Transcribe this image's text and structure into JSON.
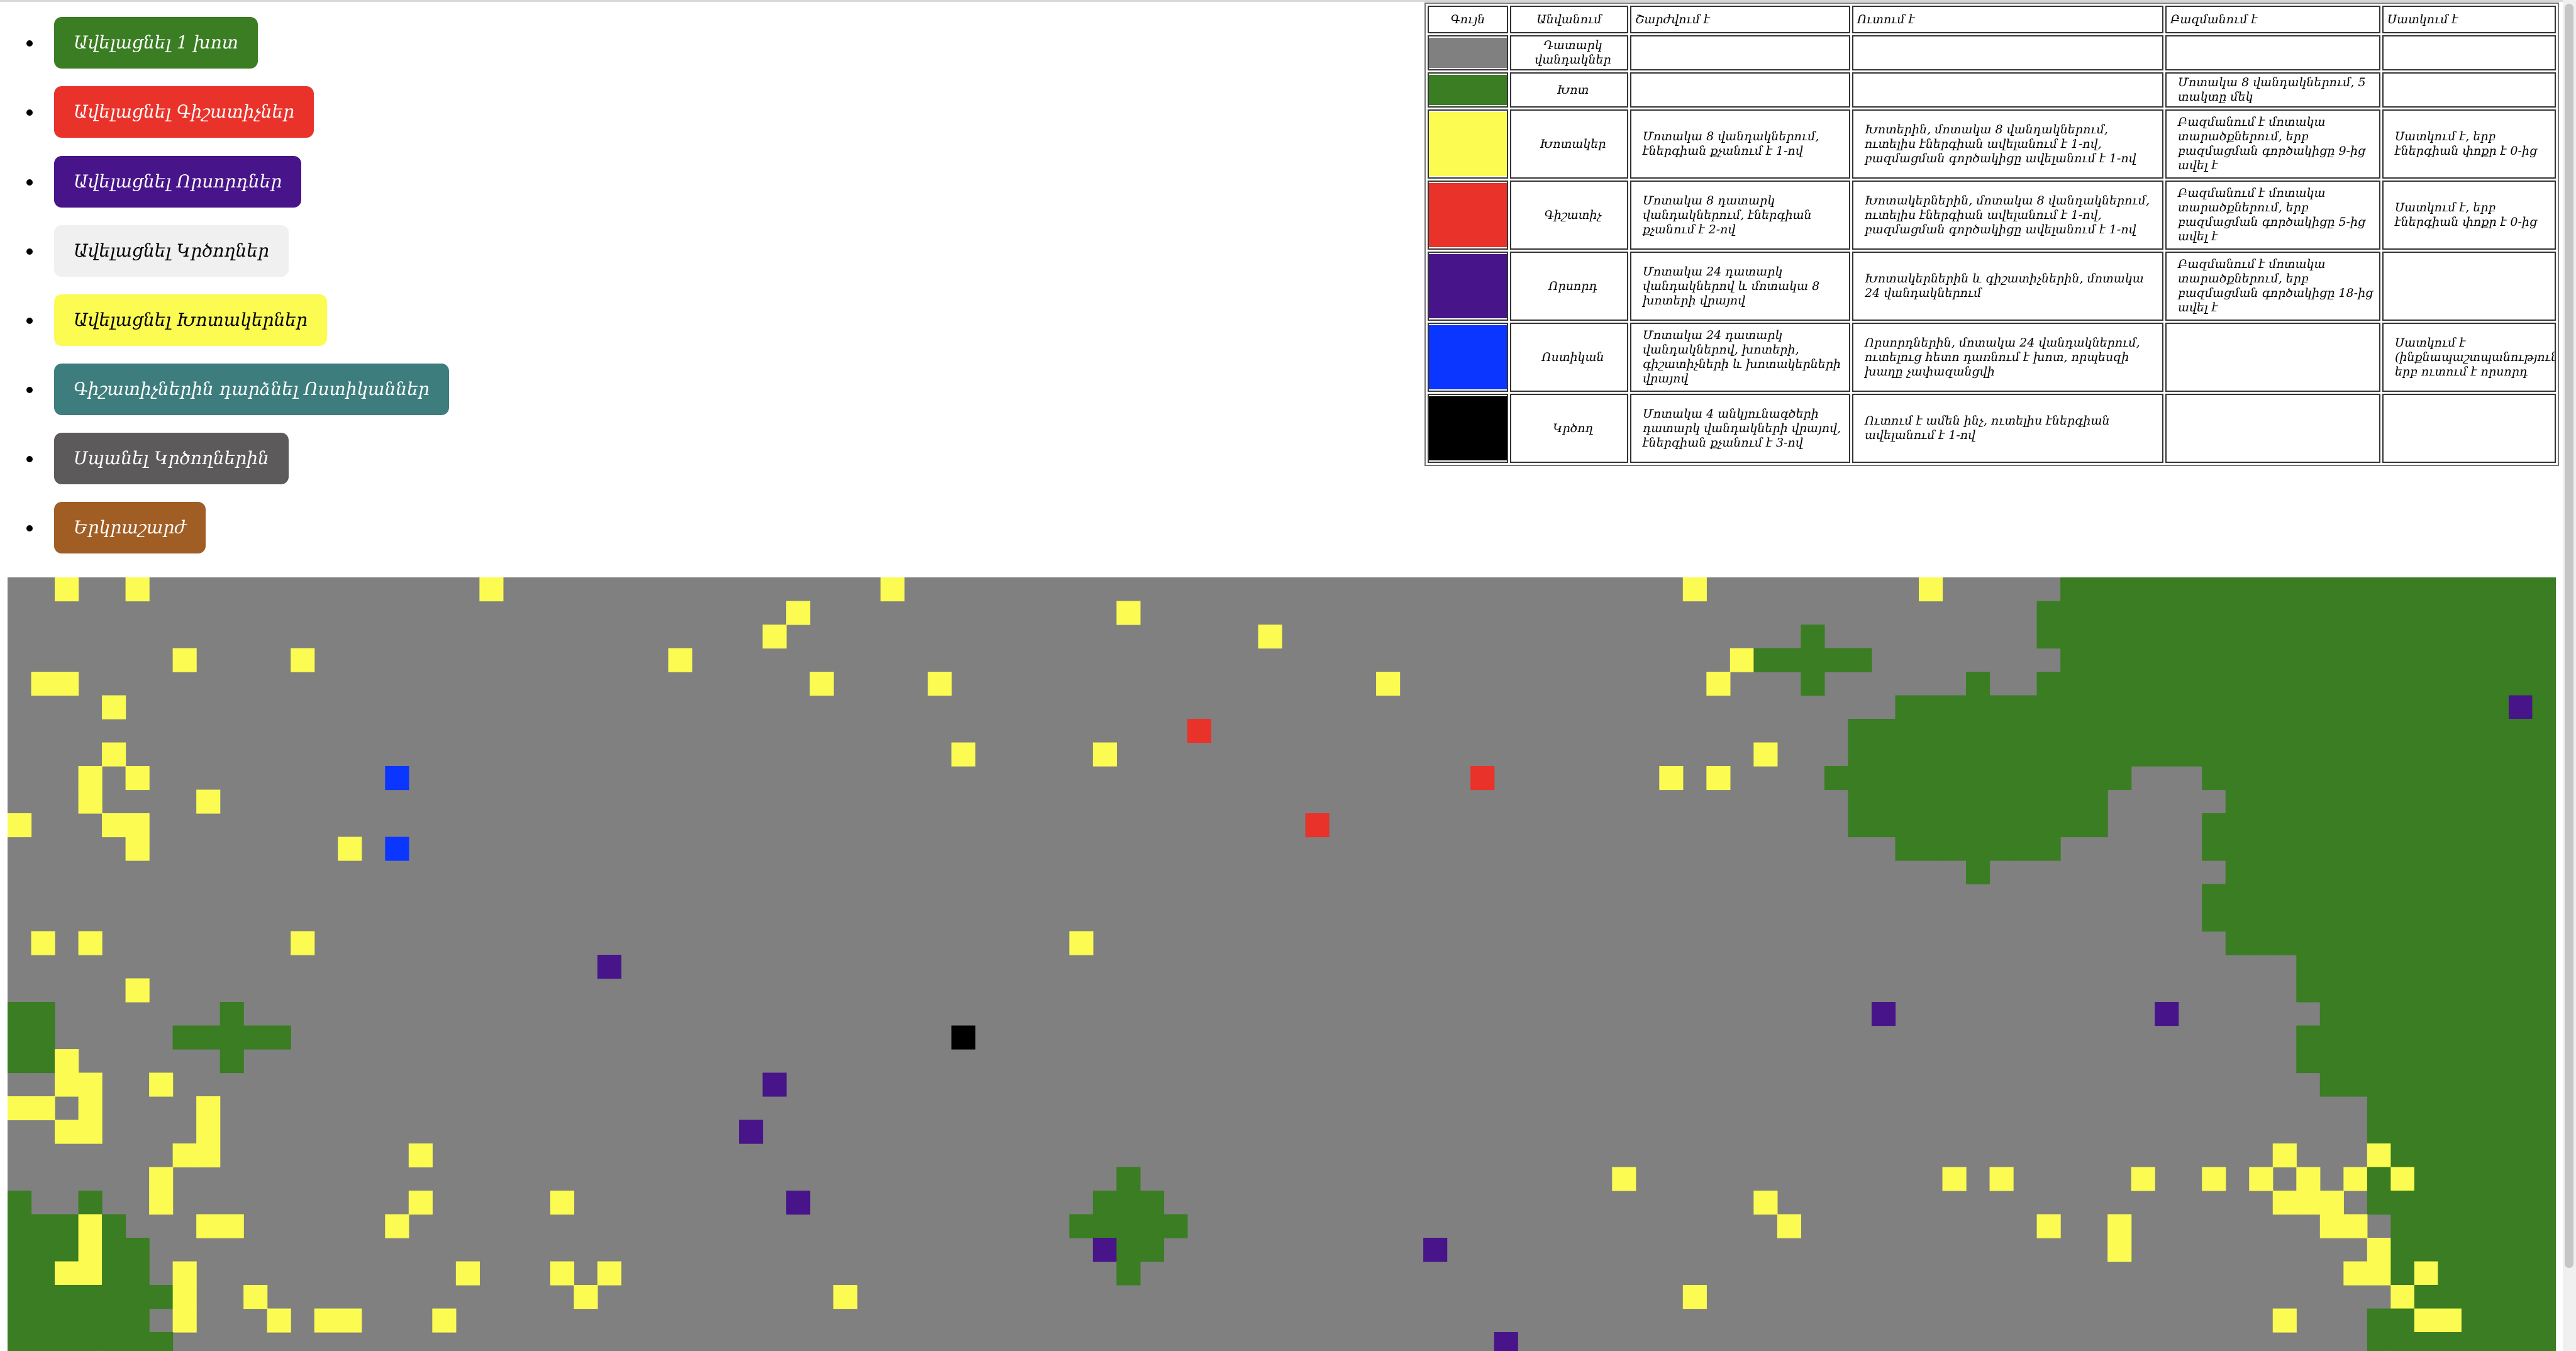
{
  "controls": [
    {
      "label": "Ավելացնել 1 խոտ",
      "bg": "#3a7d22",
      "fg": "#ffffff"
    },
    {
      "label": "Ավելացնել Գիշատիչներ",
      "bg": "#e8322a",
      "fg": "#ffffff"
    },
    {
      "label": "Ավելացնել Որսորդներ",
      "bg": "#471589",
      "fg": "#ffffff"
    },
    {
      "label": "Ավելացնել Կրծողներ",
      "bg": "#f0f0f0",
      "fg": "#000000"
    },
    {
      "label": "Ավելացնել Խոտակերներ",
      "bg": "#fbfb52",
      "fg": "#000000"
    },
    {
      "label": "Գիշատիչներին դարձնել Ոստիկաններ",
      "bg": "#3d7d7d",
      "fg": "#ffffff"
    },
    {
      "label": "Սպանել Կրծողներին",
      "bg": "#5c5a5a",
      "fg": "#ffffff"
    },
    {
      "label": "Երկրաշարժ",
      "bg": "#a05e25",
      "fg": "#ffffff"
    }
  ],
  "legend": {
    "headers": [
      "Գույն",
      "Անվանում",
      "Շարժվում է",
      "Ուտում է",
      "Բազմանում է",
      "Սատկում է"
    ],
    "rows": [
      {
        "color": "#808080",
        "name": "Դատարկ վանդակներ",
        "moves": "",
        "eats": "",
        "multiplies": "",
        "dies": ""
      },
      {
        "color": "#3a7d22",
        "name": "Խոտ",
        "moves": "",
        "eats": "",
        "multiplies": "Մոտակա 8 վանդակներում, 5 տակտը մեկ",
        "dies": ""
      },
      {
        "color": "#fbfb52",
        "name": "Խոտակեր",
        "moves": "Մոտակա 8 վանդակներում, էներգիան քչանում է 1-ով",
        "eats": "Խոտերին, մոտակա 8 վանդակներում, ուտելիս էներգիան ավելանում է 1-ով, բազմացման գործակիցը ավելանում է 1-ով",
        "multiplies": "Բազմանում է մոտակա տարածքներում, երբ բազմացման գործակիցը 9-ից ավել է",
        "dies": "Սատկում է, երբ էներգիան փոքր է 0-ից"
      },
      {
        "color": "#e8322a",
        "name": "Գիշատիչ",
        "moves": "Մոտակա 8 դատարկ վանդակներում, էներգիան քչանում է 2-ով",
        "eats": "Խոտակերներին, մոտակա 8 վանդակներում, ուտելիս էներգիան ավելանում է 1-ով, բազմացման գործակիցը ավելանում է 1-ով",
        "multiplies": "Բազմանում է մոտակա տարածքներում, երբ բազմացման գործակիցը 5-ից ավել է",
        "dies": "Սատկում է, երբ էներգիան փոքր է 0-ից"
      },
      {
        "color": "#471589",
        "name": "Որսորդ",
        "moves": "Մոտակա 24 դատարկ վանդակներով և մոտակա 8 խոտերի վրայով",
        "eats": "Խոտակերներին և գիշատիչներին, մոտակա 24 վանդակներում",
        "multiplies": "Բազմանում է մոտակա տարածքներում, երբ բազմացման գործակիցը 18-ից ավել է",
        "dies": ""
      },
      {
        "color": "#0b36ff",
        "name": "Ոստիկան",
        "moves": "Մոտակա 24 դատարկ վանդակներով, խոտերի, գիշատիչների և խոտակերների վրայով",
        "eats": "Որսորդներին, մոտակա 24 վանդակներում, ուտելուց հետո դառնում է խոտ, որպեսզի խաղը չափազանցվի",
        "multiplies": "",
        "dies": "Սատկում է (ինքնապաշտպանություն), երբ ուտում է որսորդ"
      },
      {
        "color": "#000000",
        "name": "Կրծող",
        "moves": "Մոտակա 4 անկյունագծերի դատարկ վանդակների վրայով, էներգիան քչանում է 3-ով",
        "eats": "Ուտում է ամեն ինչ, ուտելիս էներգիան ավելանում է 1-ով",
        "multiplies": "",
        "dies": ""
      }
    ]
  },
  "grid": {
    "cols": 108,
    "rows": 33,
    "palette": {
      "0": "#808080",
      "1": "#3a7d22",
      "2": "#fbfb52",
      "3": "#e8322a",
      "4": "#471589",
      "5": "#0b36ff",
      "6": "#000000"
    },
    "cells": {
      "red": [
        [
          50,
          6
        ],
        [
          62,
          8
        ],
        [
          55,
          10
        ]
      ],
      "blue": [
        [
          16,
          8
        ],
        [
          16,
          11
        ]
      ],
      "hunter": [
        [
          25,
          16
        ],
        [
          32,
          21
        ],
        [
          31,
          23
        ],
        [
          33,
          26
        ],
        [
          46,
          28
        ],
        [
          60,
          28
        ],
        [
          106,
          5
        ],
        [
          79,
          18
        ],
        [
          91,
          18
        ],
        [
          63,
          32
        ]
      ],
      "black": [
        [
          40,
          19
        ]
      ],
      "yellow": [
        [
          2,
          0
        ],
        [
          5,
          0
        ],
        [
          20,
          0
        ],
        [
          37,
          0
        ],
        [
          71,
          0
        ],
        [
          81,
          0
        ],
        [
          33,
          1
        ],
        [
          47,
          1
        ],
        [
          32,
          2
        ],
        [
          53,
          2
        ],
        [
          7,
          3
        ],
        [
          12,
          3
        ],
        [
          28,
          3
        ],
        [
          73,
          3
        ],
        [
          1,
          4
        ],
        [
          2,
          4
        ],
        [
          34,
          4
        ],
        [
          39,
          4
        ],
        [
          58,
          4
        ],
        [
          72,
          4
        ],
        [
          4,
          5
        ],
        [
          4,
          7
        ],
        [
          3,
          8
        ],
        [
          5,
          8
        ],
        [
          8,
          9
        ],
        [
          3,
          9
        ],
        [
          4,
          10
        ],
        [
          5,
          10
        ],
        [
          0,
          10
        ],
        [
          5,
          11
        ],
        [
          14,
          11
        ],
        [
          40,
          7
        ],
        [
          46,
          7
        ],
        [
          74,
          7
        ],
        [
          70,
          8
        ],
        [
          72,
          8
        ],
        [
          1,
          15
        ],
        [
          3,
          15
        ],
        [
          12,
          15
        ],
        [
          45,
          15
        ],
        [
          5,
          17
        ],
        [
          2,
          20
        ],
        [
          6,
          21
        ],
        [
          0,
          22
        ],
        [
          1,
          22
        ],
        [
          2,
          21
        ],
        [
          3,
          21
        ],
        [
          3,
          22
        ],
        [
          3,
          23
        ],
        [
          2,
          23
        ],
        [
          8,
          22
        ],
        [
          8,
          23
        ],
        [
          7,
          24
        ],
        [
          8,
          24
        ],
        [
          6,
          25
        ],
        [
          6,
          26
        ],
        [
          9,
          27
        ],
        [
          8,
          27
        ],
        [
          17,
          24
        ],
        [
          16,
          27
        ],
        [
          17,
          26
        ],
        [
          23,
          26
        ],
        [
          3,
          27
        ],
        [
          3,
          28
        ],
        [
          2,
          29
        ],
        [
          3,
          29
        ],
        [
          7,
          29
        ],
        [
          7,
          30
        ],
        [
          7,
          31
        ],
        [
          10,
          30
        ],
        [
          11,
          31
        ],
        [
          13,
          31
        ],
        [
          14,
          31
        ],
        [
          18,
          31
        ],
        [
          19,
          29
        ],
        [
          23,
          29
        ],
        [
          25,
          29
        ],
        [
          24,
          30
        ],
        [
          35,
          30
        ],
        [
          68,
          25
        ],
        [
          71,
          30
        ],
        [
          74,
          26
        ],
        [
          75,
          27
        ],
        [
          82,
          25
        ],
        [
          84,
          25
        ],
        [
          86,
          27
        ],
        [
          90,
          25
        ],
        [
          89,
          27
        ],
        [
          89,
          28
        ],
        [
          93,
          25
        ],
        [
          95,
          25
        ],
        [
          97,
          25
        ],
        [
          96,
          24
        ],
        [
          96,
          26
        ],
        [
          97,
          26
        ],
        [
          98,
          26
        ],
        [
          99,
          25
        ],
        [
          100,
          24
        ],
        [
          101,
          25
        ],
        [
          99,
          29
        ],
        [
          100,
          29
        ],
        [
          101,
          30
        ],
        [
          102,
          29
        ],
        [
          102,
          31
        ],
        [
          103,
          31
        ],
        [
          96,
          31
        ],
        [
          98,
          27
        ],
        [
          99,
          27
        ],
        [
          100,
          28
        ]
      ]
    }
  }
}
